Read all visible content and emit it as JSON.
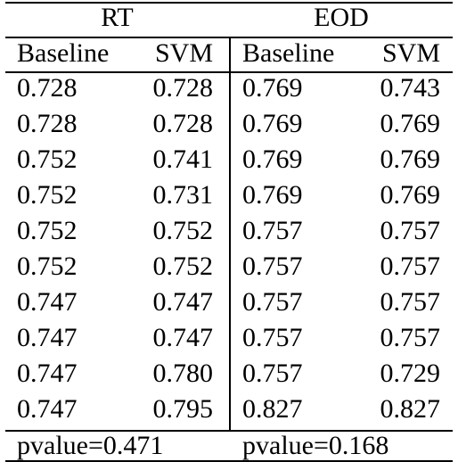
{
  "groups": {
    "left": "RT",
    "right": "EOD"
  },
  "columns": [
    "Baseline",
    "SVM",
    "Baseline",
    "SVM"
  ],
  "rows": [
    [
      "0.728",
      "0.728",
      "0.769",
      "0.743"
    ],
    [
      "0.728",
      "0.728",
      "0.769",
      "0.769"
    ],
    [
      "0.752",
      "0.741",
      "0.769",
      "0.769"
    ],
    [
      "0.752",
      "0.731",
      "0.769",
      "0.769"
    ],
    [
      "0.752",
      "0.752",
      "0.757",
      "0.757"
    ],
    [
      "0.752",
      "0.752",
      "0.757",
      "0.757"
    ],
    [
      "0.747",
      "0.747",
      "0.757",
      "0.757"
    ],
    [
      "0.747",
      "0.747",
      "0.757",
      "0.757"
    ],
    [
      "0.747",
      "0.780",
      "0.757",
      "0.729"
    ],
    [
      "0.747",
      "0.795",
      "0.827",
      "0.827"
    ]
  ],
  "footer": {
    "left": "pvalue=0.471",
    "right": "pvalue=0.168"
  }
}
